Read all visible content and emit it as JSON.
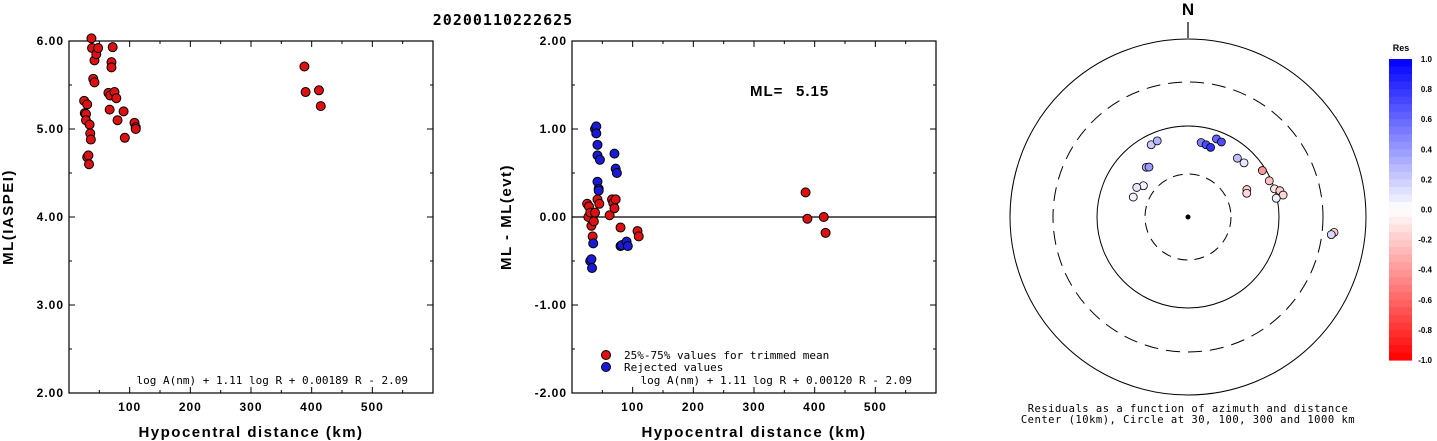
{
  "event_id": "20200110222625",
  "left_panel": {
    "ylabel": "ML(IASPEI)",
    "xlabel": "Hypocentral distance (km)",
    "formula": "log A(nm) + 1.11 log R + 0.00189 R - 2.09",
    "xticks": [
      "100",
      "200",
      "300",
      "400",
      "500"
    ],
    "yticks": [
      "2.00",
      "3.00",
      "4.00",
      "5.00",
      "6.00"
    ]
  },
  "middle_panel": {
    "ylabel": "ML - ML(evt)",
    "xlabel": "Hypocentral distance (km)",
    "ml_label": "ML=",
    "ml_value": "5.15",
    "legend_used": "25%-75% values for trimmed mean",
    "legend_rejected": "Rejected values",
    "formula": "log A(nm) + 1.11 log R + 0.00120 R - 2.09",
    "xticks": [
      "100",
      "200",
      "300",
      "400",
      "500"
    ],
    "yticks": [
      "-2.00",
      "-1.00",
      "0.00",
      "1.00",
      "2.00"
    ]
  },
  "right_panel": {
    "north": "N",
    "caption_line1": "Residuals as a function of azimuth and distance",
    "caption_line2": "Center (10km), Circle at 30, 100, 300 and 1000 km",
    "colorbar_title": "Res",
    "colorbar_ticks": [
      "1.0",
      "0.8",
      "0.6",
      "0.4",
      "0.2",
      "0.0",
      "-0.2",
      "-0.4",
      "-0.6",
      "-0.8",
      "-1.0"
    ]
  },
  "colors": {
    "used": "#dd1111",
    "rejected": "#1a1ad6",
    "positive_residual": "#0000ff",
    "negative_residual": "#ff0000"
  },
  "chart_data": [
    {
      "type": "scatter",
      "title": "20200110222625",
      "xlabel": "Hypocentral distance (km)",
      "ylabel": "ML(IASPEI)",
      "xlim": [
        0,
        600
      ],
      "ylim": [
        2.0,
        6.0
      ],
      "series": [
        {
          "color": "#dd1111",
          "x": [
            25,
            26,
            28,
            28,
            30,
            30,
            32,
            33,
            34,
            35,
            36,
            37,
            38,
            40,
            42,
            42,
            45,
            48,
            65,
            67,
            68,
            70,
            70,
            72,
            75,
            78,
            80,
            90,
            92,
            108,
            110,
            110,
            388,
            390,
            412,
            415
          ],
          "y": [
            5.32,
            5.18,
            5.17,
            5.1,
            5.28,
            4.68,
            4.7,
            4.6,
            5.05,
            4.95,
            4.88,
            6.03,
            5.92,
            5.57,
            5.53,
            5.78,
            5.85,
            5.92,
            5.41,
            5.22,
            5.38,
            5.76,
            5.7,
            5.93,
            5.42,
            5.35,
            5.1,
            5.2,
            4.9,
            5.07,
            5.02,
            5.0,
            5.71,
            5.42,
            5.44,
            5.26
          ]
        }
      ]
    },
    {
      "type": "scatter",
      "xlabel": "Hypocentral distance (km)",
      "ylabel": "ML - ML(evt)",
      "xlim": [
        0,
        600
      ],
      "ylim": [
        -2.0,
        2.0
      ],
      "series": [
        {
          "name": "25%-75% values for trimmed mean",
          "color": "#dd1111",
          "x": [
            25,
            27,
            28,
            30,
            32,
            34,
            36,
            38,
            42,
            45,
            62,
            66,
            68,
            70,
            72,
            80,
            108,
            110,
            385,
            388,
            415,
            418
          ],
          "y": [
            0.15,
            0.0,
            0.12,
            0.05,
            -0.1,
            -0.22,
            -0.05,
            0.05,
            0.2,
            0.15,
            0.02,
            0.2,
            0.16,
            0.1,
            0.2,
            -0.12,
            -0.16,
            -0.22,
            0.28,
            -0.02,
            0.0,
            -0.18
          ]
        },
        {
          "name": "Rejected values",
          "color": "#1a1ad6",
          "x": [
            30,
            32,
            33,
            35,
            38,
            40,
            40,
            42,
            42,
            42,
            44,
            44,
            46,
            70,
            72,
            74,
            80,
            82,
            90,
            92
          ],
          "y": [
            -0.5,
            -0.48,
            -0.58,
            -0.3,
            1.0,
            1.03,
            0.95,
            0.82,
            0.7,
            0.4,
            0.32,
            0.3,
            0.65,
            0.72,
            0.55,
            0.5,
            -0.33,
            -0.32,
            -0.28,
            -0.33
          ]
        }
      ]
    }
  ]
}
